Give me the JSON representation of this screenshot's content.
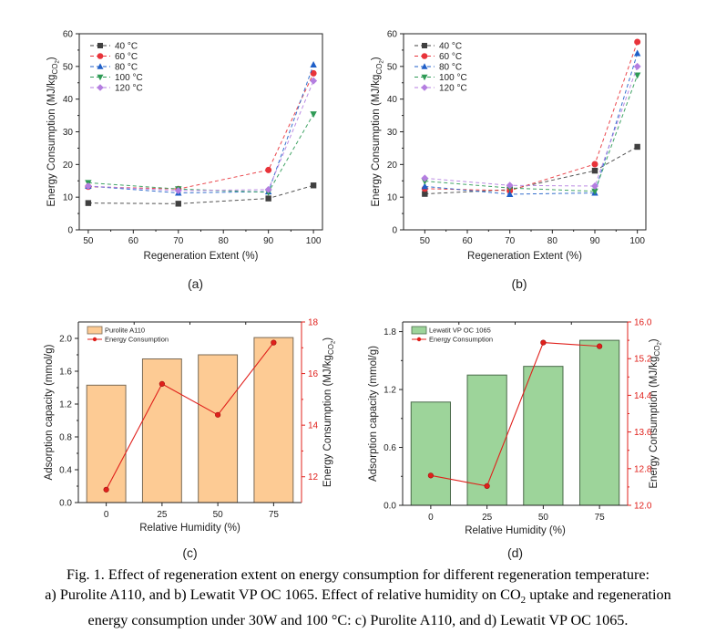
{
  "chart_data": [
    {
      "id": "a",
      "type": "line",
      "panel_label": "(a)",
      "xlabel": "Regeneration Extent (%)",
      "ylabel": "Energy Consumption (MJ/kg",
      "ylabel_sub": "CO",
      "ylabel_sub2": "2",
      "x": [
        50,
        70,
        90,
        100
      ],
      "xlim": [
        48,
        102
      ],
      "xticks": [
        50,
        60,
        70,
        80,
        90,
        100
      ],
      "ylim": [
        0,
        60
      ],
      "yticks": [
        0,
        10,
        20,
        30,
        40,
        50,
        60
      ],
      "legend": "top-left",
      "grid": false,
      "series": [
        {
          "name": "40 °C",
          "color": "#404040",
          "marker": "square",
          "values": [
            8.2,
            8.0,
            9.6,
            13.6
          ]
        },
        {
          "name": "60 °C",
          "color": "#e8333a",
          "marker": "circle",
          "values": [
            13.2,
            12.5,
            18.3,
            47.9
          ]
        },
        {
          "name": "80 °C",
          "color": "#1f5fc8",
          "marker": "triangle-up",
          "values": [
            13.4,
            11.3,
            11.7,
            50.5
          ]
        },
        {
          "name": "100 °C",
          "color": "#2e9a55",
          "marker": "triangle-down",
          "values": [
            14.4,
            12.5,
            11.5,
            35.4
          ]
        },
        {
          "name": "120 °C",
          "color": "#b47ee0",
          "marker": "diamond",
          "values": [
            13.4,
            12.0,
            12.3,
            45.6
          ]
        }
      ]
    },
    {
      "id": "b",
      "type": "line",
      "panel_label": "(b)",
      "xlabel": "Regeneration Extent (%)",
      "ylabel": "Energy Consumption (MJ/kg",
      "ylabel_sub": "CO",
      "ylabel_sub2": "2",
      "x": [
        50,
        70,
        90,
        100
      ],
      "xlim": [
        45,
        102
      ],
      "xticks": [
        50,
        60,
        70,
        80,
        90,
        100
      ],
      "ylim": [
        0,
        60
      ],
      "yticks": [
        0,
        10,
        20,
        30,
        40,
        50,
        60
      ],
      "legend": "top-left",
      "grid": false,
      "series": [
        {
          "name": "40 °C",
          "color": "#404040",
          "marker": "square",
          "values": [
            11.0,
            12.3,
            18.1,
            25.4
          ]
        },
        {
          "name": "60 °C",
          "color": "#e8333a",
          "marker": "circle",
          "values": [
            12.6,
            12.0,
            20.1,
            57.5
          ]
        },
        {
          "name": "80 °C",
          "color": "#1f5fc8",
          "marker": "triangle-up",
          "values": [
            13.3,
            10.9,
            11.3,
            54.0
          ]
        },
        {
          "name": "100 °C",
          "color": "#2e9a55",
          "marker": "triangle-down",
          "values": [
            14.9,
            12.8,
            11.8,
            47.3
          ]
        },
        {
          "name": "120 °C",
          "color": "#b47ee0",
          "marker": "diamond",
          "values": [
            15.8,
            13.6,
            13.4,
            50.0
          ]
        }
      ]
    },
    {
      "id": "c",
      "type": "bar",
      "panel_label": "(c)",
      "xlabel": "Relative Humidity (%)",
      "ylabel": "Adsorption capacity (mmol/g)",
      "y2label": "Energy Consumption (MJ/kg",
      "y2label_sub": "CO",
      "y2label_sub2": "2",
      "categories": [
        "0",
        "25",
        "50",
        "75"
      ],
      "ylim": [
        0,
        2.2
      ],
      "yticks": [
        "0.0",
        "0.4",
        "0.8",
        "1.2",
        "1.6",
        "2.0"
      ],
      "y2lim": [
        11,
        18
      ],
      "y2ticks": [
        "12",
        "14",
        "16",
        "18"
      ],
      "legend": "top-left",
      "bar_series": {
        "name": "Purolite A110",
        "color": "#fdcb94",
        "edge": "#7a6a55",
        "values": [
          1.43,
          1.75,
          1.8,
          2.01
        ]
      },
      "line_series": {
        "name": "Energy Consumption",
        "color": "#e0201b",
        "values": [
          11.5,
          15.6,
          14.4,
          17.2
        ]
      }
    },
    {
      "id": "d",
      "type": "bar",
      "panel_label": "(d)",
      "xlabel": "Relative Humidity (%)",
      "ylabel": "Adsorption capacity (mmol/g)",
      "y2label": "Energy Consumption (MJ/kg",
      "y2label_sub": "CO",
      "y2label_sub2": "2",
      "categories": [
        "0",
        "25",
        "50",
        "75"
      ],
      "ylim": [
        0,
        1.9
      ],
      "yticks": [
        "0.0",
        "0.6",
        "1.2",
        "1.8"
      ],
      "y2lim": [
        12.0,
        16.0
      ],
      "y2ticks": [
        "12.0",
        "12.8",
        "13.6",
        "14.4",
        "15.2",
        "16.0"
      ],
      "legend": "top-left",
      "bar_series": {
        "name": "Lewatit VP OC 1065",
        "color": "#9dd49a",
        "edge": "#4a6a4a",
        "values": [
          1.07,
          1.35,
          1.44,
          1.71
        ]
      },
      "line_series": {
        "name": "Energy Consumption",
        "color": "#e0201b",
        "values": [
          12.65,
          12.42,
          15.55,
          15.47
        ]
      }
    }
  ],
  "caption": {
    "line1": "Fig. 1. Effect of regeneration extent on energy consumption for different regeneration temperature:",
    "line2_pre": "a) Purolite A110, and b) Lewatit VP OC 1065. Effect of relative humidity on CO",
    "line2_sub": "2",
    "line2_post": " uptake and regeneration",
    "line3": "energy consumption under 30W and 100 °C: c) Purolite A110, and d) Lewatit VP OC 1065."
  }
}
